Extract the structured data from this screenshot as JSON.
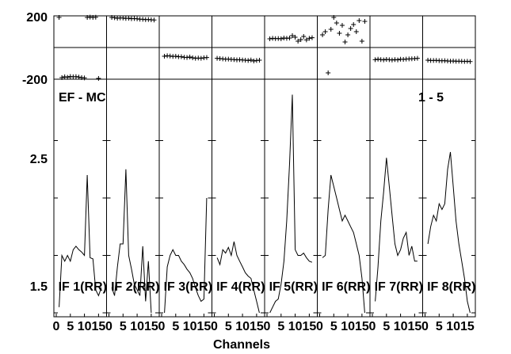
{
  "chart_data": {
    "type": "line",
    "title_left": "EF - MC",
    "title_right": "1 - 5",
    "xlabel": "Channels",
    "x_ticks": [
      "0",
      "5",
      "10",
      "15"
    ],
    "xlim": [
      0,
      17
    ],
    "phase_ylim": [
      -200,
      200
    ],
    "phase_tick_labels": [
      "200",
      "-200"
    ],
    "amp_ylim": [
      1.5,
      3.5
    ],
    "amp_tick_labels": [
      "2.5",
      "1.5"
    ],
    "panels": [
      {
        "name": "IF 1(RR)",
        "channels": [
          1,
          2,
          3,
          4,
          5,
          6,
          7,
          8,
          9,
          10,
          11,
          12,
          13,
          14,
          15,
          16
        ],
        "phase": [
          190,
          -190,
          -185,
          -188,
          -183,
          -185,
          -184,
          -187,
          -190,
          -192,
          190,
          192,
          190,
          191,
          -195,
          null
        ],
        "amplitude": [
          1.55,
          2.0,
          1.95,
          2.0,
          1.95,
          2.05,
          2.08,
          2.05,
          2.03,
          2.0,
          2.7,
          1.98,
          1.97,
          1.7,
          1.65,
          1.72
        ]
      },
      {
        "name": "IF 2(RR)",
        "channels": [
          1,
          2,
          3,
          4,
          5,
          6,
          7,
          8,
          9,
          10,
          11,
          12,
          13,
          14,
          15,
          16
        ],
        "phase": [
          190,
          188,
          185,
          187,
          186,
          184,
          185,
          182,
          183,
          181,
          179,
          178,
          176,
          177,
          175,
          174
        ],
        "amplitude": [
          1.72,
          1.65,
          1.9,
          2.1,
          2.1,
          2.75,
          2.0,
          1.88,
          1.75,
          1.7,
          1.65,
          2.08,
          1.6,
          1.95,
          1.5,
          null
        ]
      },
      {
        "name": "IF 3(RR)",
        "channels": [
          1,
          2,
          3,
          4,
          5,
          6,
          7,
          8,
          9,
          10,
          11,
          12,
          13,
          14,
          15,
          16
        ],
        "phase": [
          -55,
          -52,
          -54,
          -56,
          -55,
          -58,
          -58,
          -62,
          -63,
          -60,
          -65,
          -68,
          -66,
          -68,
          -65,
          -63
        ],
        "amplitude": [
          1.5,
          1.9,
          2.0,
          2.05,
          2.0,
          2.0,
          1.95,
          1.92,
          1.88,
          1.85,
          1.8,
          1.72,
          1.65,
          1.6,
          1.62,
          2.5
        ]
      },
      {
        "name": "IF 4(RR)",
        "channels": [
          1,
          2,
          3,
          4,
          5,
          6,
          7,
          8,
          9,
          10,
          11,
          12,
          13,
          14,
          15,
          16
        ],
        "phase": [
          -68,
          -70,
          -72,
          -74,
          -73,
          -75,
          -76,
          -78,
          -77,
          -79,
          -80,
          -82,
          -79,
          -85,
          -82,
          -80
        ],
        "amplitude": [
          1.98,
          1.92,
          2.05,
          2.02,
          2.07,
          2.0,
          2.12,
          2.0,
          1.95,
          1.9,
          1.85,
          1.82,
          1.8,
          1.7,
          1.6,
          1.5
        ]
      },
      {
        "name": "IF 5(RR)",
        "channels": [
          1,
          2,
          3,
          4,
          5,
          6,
          7,
          8,
          9,
          10,
          11,
          12,
          13,
          14,
          15,
          16
        ],
        "phase": [
          55,
          58,
          56,
          57,
          55,
          60,
          58,
          60,
          75,
          65,
          40,
          50,
          70,
          48,
          58,
          62
        ],
        "amplitude": [
          1.5,
          1.55,
          1.6,
          1.62,
          1.75,
          1.95,
          2.3,
          2.8,
          3.4,
          2.05,
          2.0,
          2.0,
          2.02,
          1.98,
          1.95,
          1.94
        ]
      },
      {
        "name": "IF 6(RR)",
        "channels": [
          1,
          2,
          3,
          4,
          5,
          6,
          7,
          8,
          9,
          10,
          11,
          12,
          13,
          14,
          15,
          16
        ],
        "phase": [
          80,
          100,
          -160,
          115,
          190,
          155,
          90,
          140,
          35,
          80,
          120,
          145,
          100,
          170,
          40,
          165
        ],
        "amplitude": [
          1.98,
          2.0,
          2.4,
          2.7,
          2.6,
          2.5,
          2.4,
          2.3,
          2.35,
          2.3,
          2.25,
          2.2,
          2.1,
          2.0,
          1.8,
          1.5
        ]
      },
      {
        "name": "IF 7(RR)",
        "channels": [
          1,
          2,
          3,
          4,
          5,
          6,
          7,
          8,
          9,
          10,
          11,
          12,
          13,
          14,
          15,
          16
        ],
        "phase": [
          -77,
          -74,
          -76,
          -78,
          -75,
          -77,
          -79,
          -76,
          -78,
          -74,
          -75,
          -73,
          -72,
          -71,
          -70,
          -68
        ],
        "amplitude": [
          1.6,
          1.9,
          2.3,
          2.55,
          2.85,
          2.6,
          2.35,
          2.1,
          2.0,
          2.05,
          2.15,
          2.2,
          2.0,
          2.08,
          1.95,
          1.95
        ]
      },
      {
        "name": "IF 8(RR)",
        "channels": [
          1,
          2,
          3,
          4,
          5,
          6,
          7,
          8,
          9,
          10,
          11,
          12,
          13,
          14,
          15,
          16
        ],
        "phase": [
          -80,
          -82,
          -82,
          -81,
          -83,
          -84,
          -83,
          -85,
          -86,
          -85,
          -87,
          -86,
          -87,
          -88,
          -87,
          -89
        ],
        "amplitude": [
          2.1,
          2.25,
          2.35,
          2.3,
          2.45,
          2.4,
          2.45,
          2.75,
          2.9,
          2.6,
          2.3,
          2.1,
          1.95,
          1.8,
          1.6,
          1.5
        ]
      }
    ]
  }
}
